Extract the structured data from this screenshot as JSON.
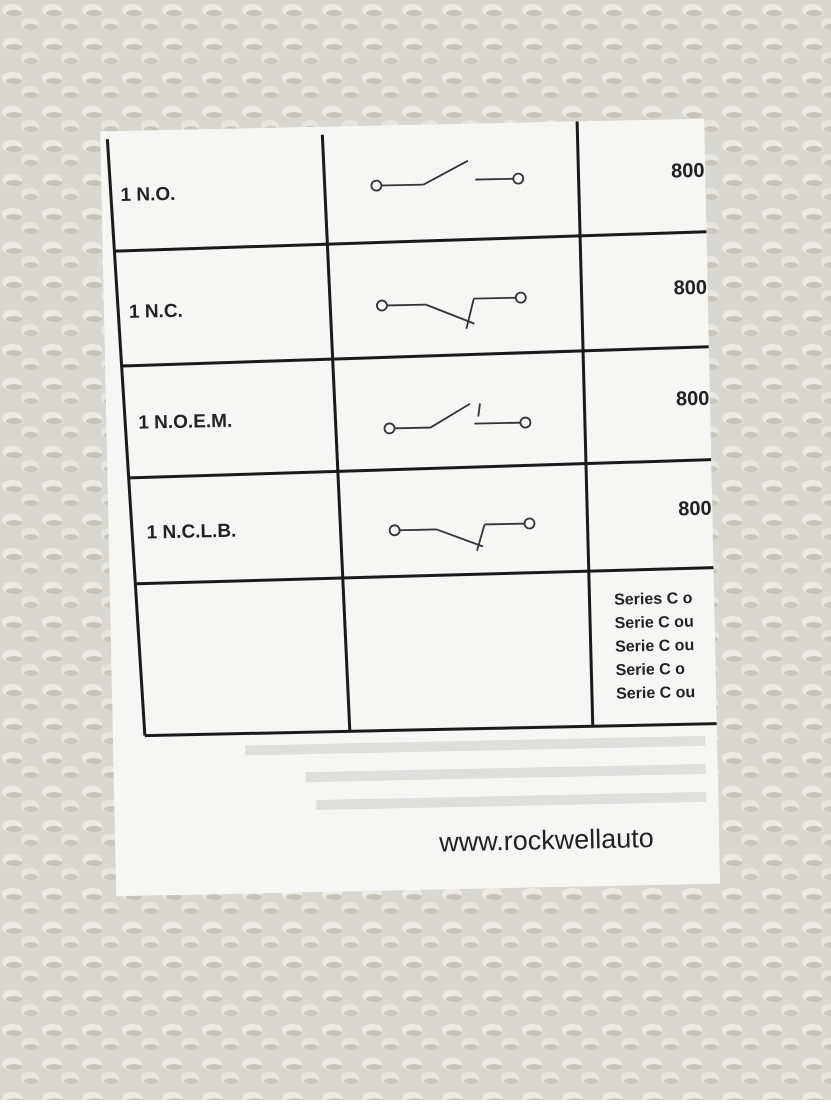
{
  "table": {
    "rows": [
      {
        "contact": "1 N.O.",
        "catalog": "800"
      },
      {
        "contact": "1 N.C.",
        "catalog": "800"
      },
      {
        "contact": "1 N.O.E.M.",
        "catalog": "800"
      },
      {
        "contact": "1 N.C.L.B.",
        "catalog": "800"
      }
    ],
    "notes": [
      "Series C o",
      "Serie C ou",
      "Serie C ou",
      "Serie C o",
      "Serie C ou"
    ]
  },
  "footer": {
    "url": "www.rockwellauto"
  }
}
